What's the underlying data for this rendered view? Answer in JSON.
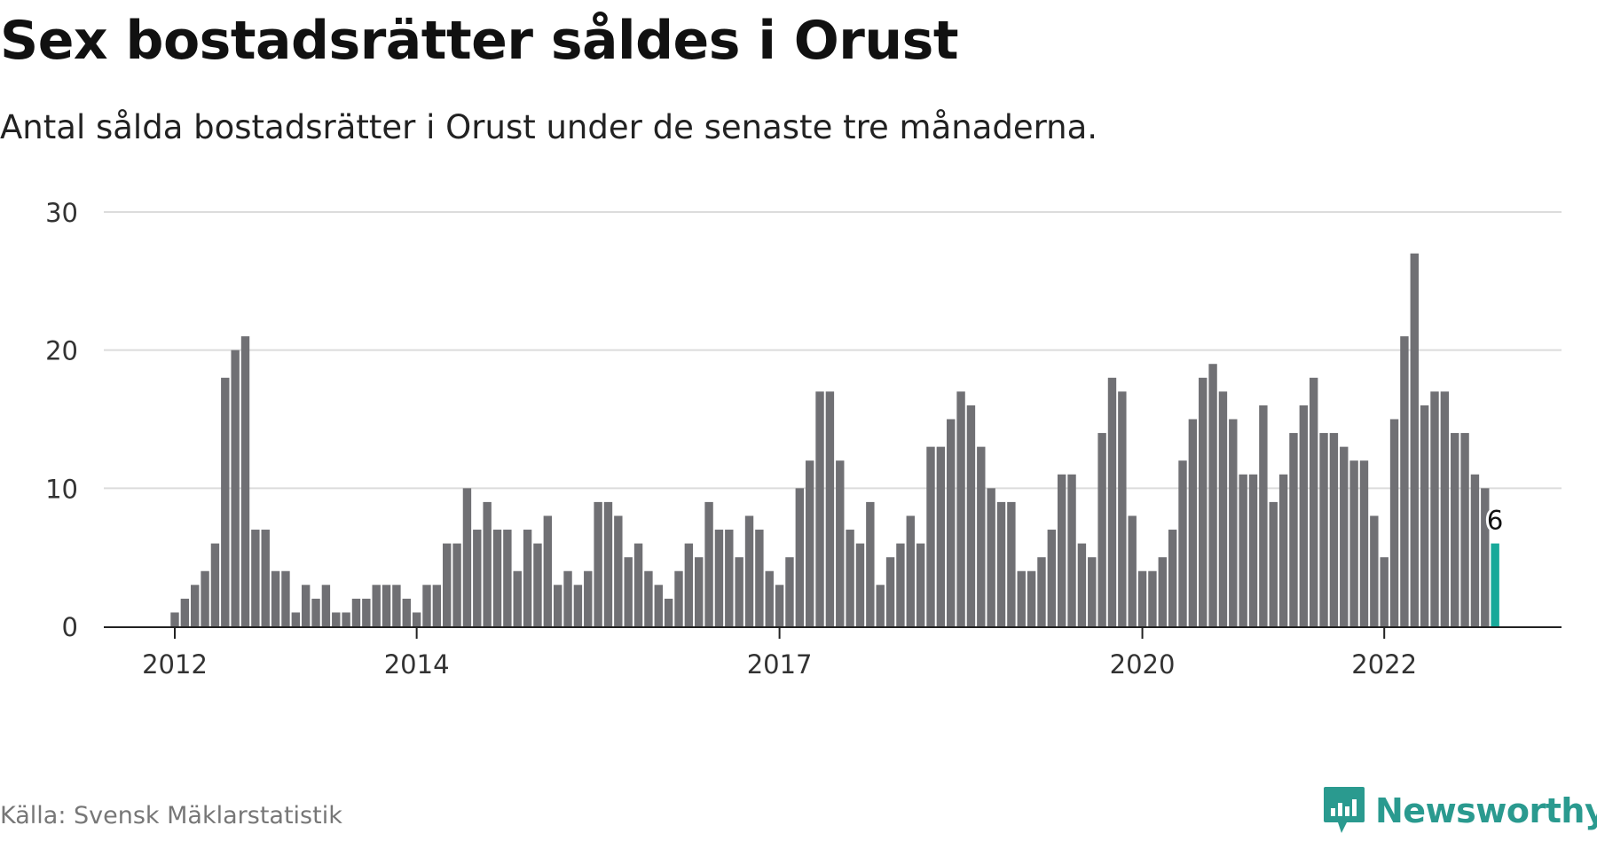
{
  "title": "Sex bostadsrätter såldes i Orust",
  "subtitle": "Antal sålda bostadsrätter i Orust under de senaste tre månaderna.",
  "source": "Källa: Svensk Mäklarstatistik",
  "brand": {
    "name": "Newsworthy",
    "icon": "newsworthy-logo-icon"
  },
  "colors": {
    "bar": "#707074",
    "highlight": "#17a99a",
    "grid": "#dcdcdc",
    "axis": "#222222",
    "brand": "#2a9a8f"
  },
  "chart_data": {
    "type": "bar",
    "ylim": [
      0,
      30
    ],
    "yticks": [
      0,
      10,
      20,
      30
    ],
    "xticks": [
      {
        "label": "2012",
        "index": 0
      },
      {
        "label": "2014",
        "index": 24
      },
      {
        "label": "2017",
        "index": 60
      },
      {
        "label": "2020",
        "index": 96
      },
      {
        "label": "2022",
        "index": 120
      }
    ],
    "values": [
      1,
      2,
      3,
      4,
      6,
      18,
      20,
      21,
      7,
      7,
      4,
      4,
      1,
      3,
      2,
      3,
      1,
      1,
      2,
      2,
      3,
      3,
      3,
      2,
      1,
      3,
      3,
      6,
      6,
      10,
      7,
      9,
      7,
      7,
      4,
      7,
      6,
      8,
      3,
      4,
      3,
      4,
      9,
      9,
      8,
      5,
      6,
      4,
      3,
      2,
      4,
      6,
      5,
      9,
      7,
      7,
      5,
      8,
      7,
      4,
      3,
      5,
      10,
      12,
      17,
      17,
      12,
      7,
      6,
      9,
      3,
      5,
      6,
      8,
      6,
      13,
      13,
      15,
      17,
      16,
      13,
      10,
      9,
      9,
      4,
      4,
      5,
      7,
      11,
      11,
      6,
      5,
      14,
      18,
      17,
      8,
      4,
      4,
      5,
      7,
      12,
      15,
      18,
      19,
      17,
      15,
      11,
      11,
      16,
      9,
      11,
      14,
      16,
      18,
      14,
      14,
      13,
      12,
      12,
      8,
      5,
      15,
      21,
      27,
      16,
      17,
      17,
      14,
      14,
      11,
      10,
      6
    ],
    "highlight_index": 131,
    "highlight_label": "6"
  }
}
